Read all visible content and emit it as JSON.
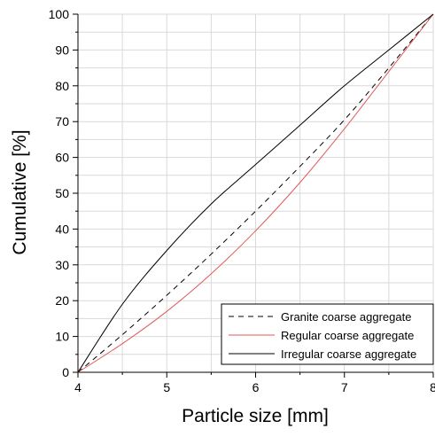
{
  "chart_data": {
    "type": "line",
    "title": "",
    "xlabel": "Particle size [mm]",
    "ylabel": "Cumulative [%]",
    "xlim": [
      4,
      8
    ],
    "ylim": [
      0,
      100
    ],
    "xticks": [
      4,
      5,
      6,
      7,
      8
    ],
    "yticks": [
      0,
      10,
      20,
      30,
      40,
      50,
      60,
      70,
      80,
      90,
      100
    ],
    "x_minor_step": 0.5,
    "y_minor_step": 5,
    "grid": true,
    "legend_position": "bottom-right",
    "series": [
      {
        "name": "Granite coarse aggregate",
        "color": "#000000",
        "dash": "dashed",
        "x": [
          4,
          4.5,
          5,
          5.5,
          6,
          6.5,
          7,
          7.5,
          8
        ],
        "y": [
          0,
          10.5,
          21.5,
          33,
          45,
          57.5,
          70.5,
          85,
          100
        ]
      },
      {
        "name": "Regular coarse aggregate",
        "color": "#e05a5a",
        "dash": "solid",
        "x": [
          4,
          4.5,
          5,
          5.5,
          6,
          6.5,
          7,
          7.5,
          8
        ],
        "y": [
          0,
          8,
          17,
          27.5,
          39.5,
          53,
          68,
          84,
          100
        ]
      },
      {
        "name": "Irregular coarse aggregate",
        "color": "#000000",
        "dash": "solid",
        "x": [
          4,
          4.5,
          5,
          5.5,
          6,
          6.5,
          7,
          7.5,
          8
        ],
        "y": [
          0,
          19,
          34,
          47,
          58,
          69,
          80,
          90,
          100
        ]
      }
    ]
  }
}
